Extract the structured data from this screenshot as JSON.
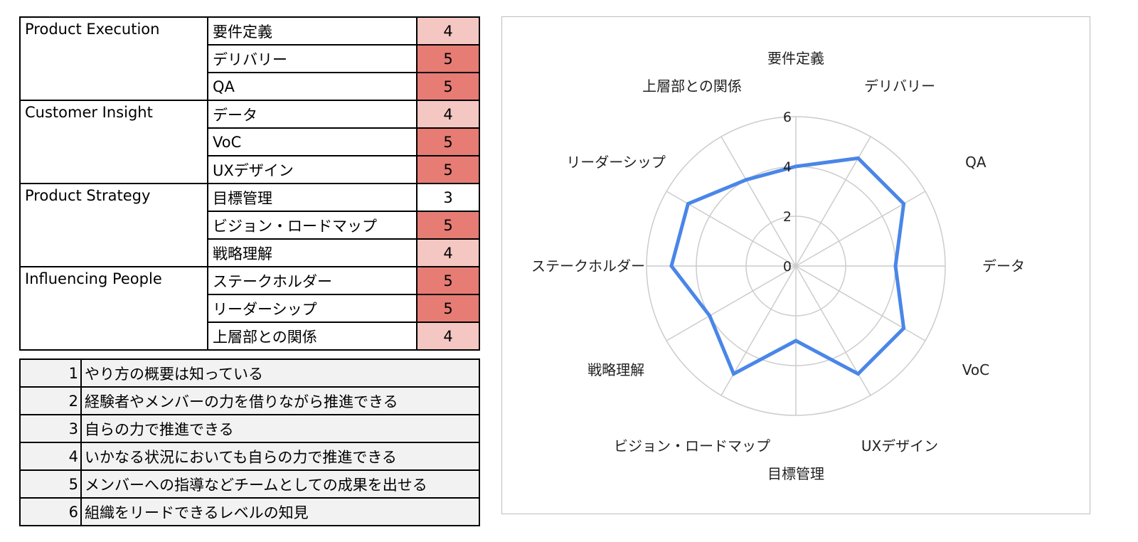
{
  "skills_table": {
    "groups": [
      {
        "category": "Product Execution",
        "items": [
          {
            "skill": "要件定義",
            "score": "4"
          },
          {
            "skill": "デリバリー",
            "score": "5"
          },
          {
            "skill": "QA",
            "score": "5"
          }
        ]
      },
      {
        "category": "Customer Insight",
        "items": [
          {
            "skill": "データ",
            "score": "4"
          },
          {
            "skill": "VoC",
            "score": "5"
          },
          {
            "skill": "UXデザイン",
            "score": "5"
          }
        ]
      },
      {
        "category": "Product Strategy",
        "items": [
          {
            "skill": "目標管理",
            "score": "3"
          },
          {
            "skill": "ビジョン・ロードマップ",
            "score": "5"
          },
          {
            "skill": "戦略理解",
            "score": "4"
          }
        ]
      },
      {
        "category": "Influencing People",
        "items": [
          {
            "skill": "ステークホルダー",
            "score": "5"
          },
          {
            "skill": "リーダーシップ",
            "score": "5"
          },
          {
            "skill": "上層部との関係",
            "score": "4"
          }
        ]
      }
    ],
    "score_colors": {
      "3": "#ffffff",
      "4": "#f4c7c3",
      "5": "#e67c73"
    }
  },
  "legend_table": {
    "rows": [
      {
        "level": "1",
        "description": "やり方の概要は知っている"
      },
      {
        "level": "2",
        "description": "経験者やメンバーの力を借りながら推進できる"
      },
      {
        "level": "3",
        "description": "自らの力で推進できる"
      },
      {
        "level": "4",
        "description": "いかなる状況においても自らの力で推進できる"
      },
      {
        "level": "5",
        "description": "メンバーへの指導などチームとしての成果を出せる"
      },
      {
        "level": "6",
        "description": "組織をリードできるレベルの知見"
      }
    ]
  },
  "chart_data": {
    "type": "radar",
    "categories": [
      "要件定義",
      "デリバリー",
      "QA",
      "データ",
      "VoC",
      "UXデザイン",
      "目標管理",
      "ビジョン・ロードマップ",
      "戦略理解",
      "ステークホルダー",
      "リーダーシップ",
      "上層部との関係"
    ],
    "values": [
      4,
      5,
      5,
      4,
      5,
      5,
      3,
      5,
      4,
      5,
      5,
      4
    ],
    "rlim": [
      0,
      6
    ],
    "ticks": [
      "0",
      "2",
      "4",
      "6"
    ],
    "grid": true,
    "line_color": "#4a86e8",
    "grid_color": "#cccccc"
  }
}
